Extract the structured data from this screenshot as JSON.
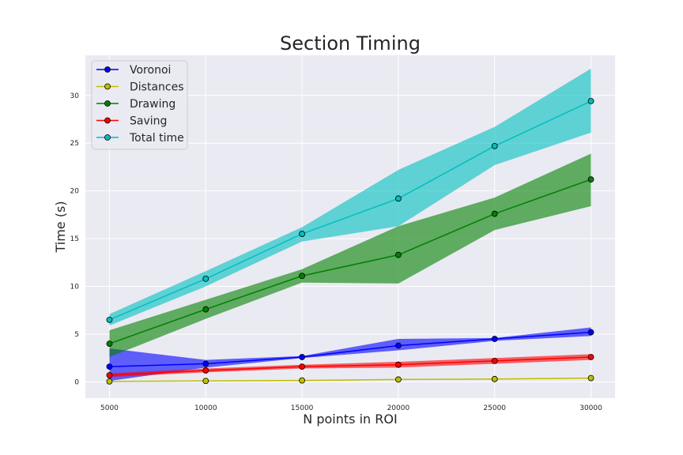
{
  "chart_data": {
    "type": "line",
    "title": "Section Timing",
    "xlabel": "N points in ROI",
    "ylabel": "Time (s)",
    "x": [
      5000,
      10000,
      15000,
      20000,
      25000,
      30000
    ],
    "xticks": [
      "5000",
      "10000",
      "15000",
      "20000",
      "25000",
      "30000"
    ],
    "yticks": [
      "0",
      "5",
      "10",
      "15",
      "20",
      "25",
      "30"
    ],
    "xlim": [
      3750,
      31250
    ],
    "ylim": [
      -1.7,
      34.2
    ],
    "grid": true,
    "legend": "top-left",
    "series": [
      {
        "name": "Voronoi",
        "color": "#0000ff",
        "values": [
          1.6,
          1.9,
          2.6,
          3.8,
          4.5,
          5.2
        ],
        "lower": [
          0.1,
          1.5,
          2.5,
          3.3,
          4.3,
          4.8
        ],
        "upper": [
          3.5,
          2.3,
          2.7,
          4.5,
          4.6,
          5.7
        ]
      },
      {
        "name": "Distances",
        "color": "#bfbf00",
        "values": [
          0.05,
          0.1,
          0.15,
          0.25,
          0.3,
          0.4
        ],
        "lower": [
          0.0,
          0.05,
          0.1,
          0.2,
          0.25,
          0.35
        ],
        "upper": [
          0.1,
          0.15,
          0.2,
          0.3,
          0.35,
          0.45
        ]
      },
      {
        "name": "Drawing",
        "color": "#008000",
        "values": [
          4.0,
          7.6,
          11.1,
          13.3,
          17.6,
          21.2
        ],
        "lower": [
          2.6,
          6.6,
          10.4,
          10.3,
          15.9,
          18.4
        ],
        "upper": [
          5.4,
          8.6,
          11.8,
          16.3,
          19.3,
          23.9
        ]
      },
      {
        "name": "Saving",
        "color": "#ff0000",
        "values": [
          0.7,
          1.2,
          1.6,
          1.8,
          2.2,
          2.6
        ],
        "lower": [
          0.5,
          1.0,
          1.4,
          1.5,
          1.9,
          2.3
        ],
        "upper": [
          0.9,
          1.4,
          1.8,
          2.1,
          2.5,
          2.9
        ]
      },
      {
        "name": "Total time",
        "color": "#00bfbf",
        "values": [
          6.5,
          10.8,
          15.5,
          19.2,
          24.7,
          29.4
        ],
        "lower": [
          5.9,
          10.0,
          14.7,
          16.3,
          22.7,
          26.1
        ],
        "upper": [
          7.1,
          11.6,
          16.2,
          22.2,
          26.7,
          32.8
        ]
      }
    ]
  }
}
